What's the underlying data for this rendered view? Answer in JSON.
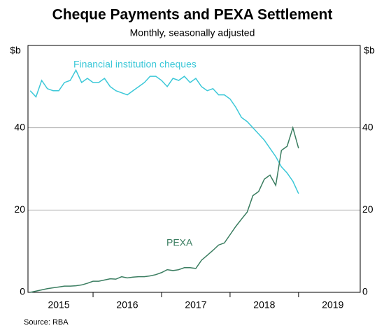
{
  "chart_data": {
    "type": "line",
    "title": "Cheque Payments and PEXA Settlement",
    "subtitle": "Monthly, seasonally adjusted",
    "y_unit": "$b",
    "source": "Source:    RBA",
    "categories": [
      "2015",
      "2016",
      "2017",
      "2018",
      "2019"
    ],
    "x": [
      2015.083,
      2015.167,
      2015.25,
      2015.333,
      2015.417,
      2015.5,
      2015.583,
      2015.667,
      2015.75,
      2015.833,
      2015.917,
      2016.0,
      2016.083,
      2016.167,
      2016.25,
      2016.333,
      2016.417,
      2016.5,
      2016.583,
      2016.667,
      2016.75,
      2016.833,
      2016.917,
      2017.0,
      2017.083,
      2017.167,
      2017.25,
      2017.333,
      2017.417,
      2017.5,
      2017.583,
      2017.667,
      2017.75,
      2017.833,
      2017.917,
      2018.0,
      2018.083,
      2018.167,
      2018.25,
      2018.333,
      2018.417,
      2018.5,
      2018.583,
      2018.667,
      2018.75,
      2018.833,
      2018.917,
      2019.0
    ],
    "series": [
      {
        "name": "Financial institution cheques",
        "color": "#3cc8d8",
        "values": [
          49,
          47.5,
          51.5,
          49.5,
          49,
          49,
          51,
          51.5,
          54,
          51,
          52,
          51,
          51,
          52,
          50,
          49,
          48.5,
          48,
          49,
          50,
          51,
          52.5,
          52.5,
          51.5,
          50,
          52,
          51.5,
          52.5,
          51,
          52,
          50,
          49,
          49.5,
          48,
          48,
          47,
          45,
          42.5,
          41.5,
          40,
          38.5,
          37,
          35,
          33,
          30.5,
          29,
          27,
          24
        ]
      },
      {
        "name": "PEXA",
        "color": "#3a7d60",
        "values": [
          0,
          0.3,
          0.6,
          0.9,
          1.1,
          1.3,
          1.5,
          1.5,
          1.6,
          1.8,
          2.2,
          2.7,
          2.7,
          3,
          3.3,
          3.2,
          3.8,
          3.5,
          3.7,
          3.8,
          3.8,
          4,
          4.3,
          4.8,
          5.5,
          5.3,
          5.5,
          6,
          6,
          5.8,
          7.8,
          9,
          10.2,
          11.5,
          12,
          14,
          16,
          17.8,
          19.5,
          23.5,
          24.5,
          27.5,
          28.5,
          26,
          34.5,
          35.5,
          40,
          35
        ]
      }
    ],
    "xlim": [
      2015.05,
      2019.9
    ],
    "xticks": [
      2016,
      2017,
      2018,
      2019
    ],
    "ylim": [
      0,
      60
    ],
    "yticks": [
      0,
      20,
      40
    ],
    "grid": true
  }
}
